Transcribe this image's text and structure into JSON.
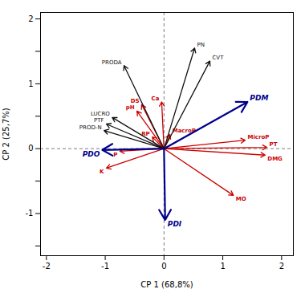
{
  "chart_data": {
    "type": "biplot",
    "xlabel": "CP 1 (68,8%)",
    "ylabel": "CP 2 (25,7%)",
    "xlim": [
      -2.1,
      2.2
    ],
    "ylim": [
      -1.65,
      2.1
    ],
    "xticks": [
      -2,
      -1,
      0,
      1,
      2
    ],
    "yticks": [
      {
        "value": -1.5,
        "label": ""
      },
      -1,
      {
        "value": -0.5,
        "label": ""
      },
      0,
      {
        "value": 0.5,
        "label": ""
      },
      1,
      {
        "value": 1.5,
        "label": ""
      },
      2
    ],
    "grid": false,
    "groups": [
      {
        "color": "#cc0000",
        "arrows": [
          {
            "name": "DS",
            "x": -0.38,
            "y": 0.68
          },
          {
            "name": "pH",
            "x": -0.46,
            "y": 0.58
          },
          {
            "name": "Ca",
            "x": -0.04,
            "y": 0.72
          },
          {
            "name": "RP",
            "x": -0.2,
            "y": 0.18
          },
          {
            "name": "MacroP",
            "x": 0.1,
            "y": 0.22
          },
          {
            "name": "MicroP",
            "x": 1.38,
            "y": 0.13
          },
          {
            "name": "PT",
            "x": 1.75,
            "y": 0.02
          },
          {
            "name": "DMG",
            "x": 1.72,
            "y": -0.1
          },
          {
            "name": "MO",
            "x": 1.18,
            "y": -0.72
          },
          {
            "name": "P",
            "x": -0.75,
            "y": -0.04
          },
          {
            "name": "K",
            "x": -0.98,
            "y": -0.3
          }
        ]
      },
      {
        "color": "#111111",
        "arrows": [
          {
            "name": "PN",
            "x": 0.52,
            "y": 1.55
          },
          {
            "name": "CVT",
            "x": 0.78,
            "y": 1.35
          },
          {
            "name": "PRODA",
            "x": -0.68,
            "y": 1.28
          },
          {
            "name": "LUCRO",
            "x": -0.88,
            "y": 0.48
          },
          {
            "name": "PTF",
            "x": -0.98,
            "y": 0.38
          },
          {
            "name": "PROD-N",
            "x": -1.02,
            "y": 0.28
          }
        ]
      },
      {
        "color": "#00008B",
        "arrows": [
          {
            "name": "PDM",
            "x": 1.42,
            "y": 0.72
          },
          {
            "name": "PDO",
            "x": -1.05,
            "y": -0.02
          },
          {
            "name": "PDI",
            "x": 0.02,
            "y": -1.1
          }
        ]
      }
    ]
  }
}
